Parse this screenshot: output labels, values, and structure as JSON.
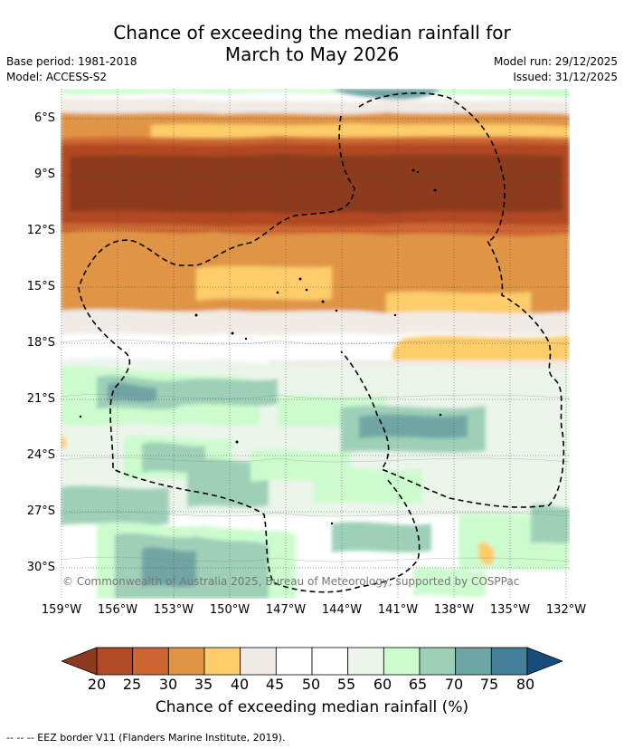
{
  "title": {
    "line1": "Chance of exceeding the median rainfall for",
    "line2": "March to May 2026"
  },
  "meta": {
    "base_period": "Base period: 1981-2018",
    "model": "Model: ACCESS-S2",
    "model_run": "Model run: 29/12/2025",
    "issued": "Issued: 31/12/2025"
  },
  "axes": {
    "lat_labels": [
      "6°S",
      "9°S",
      "12°S",
      "15°S",
      "18°S",
      "21°S",
      "24°S",
      "27°S",
      "30°S"
    ],
    "lon_labels": [
      "159°W",
      "156°W",
      "153°W",
      "150°W",
      "147°W",
      "144°W",
      "141°W",
      "138°W",
      "135°W",
      "132°W"
    ]
  },
  "map": {
    "credit": "© Commonwealth of Australia 2025, Bureau of Meteorology, supported by COSPPac"
  },
  "colorbar": {
    "labels": [
      "20",
      "25",
      "30",
      "35",
      "40",
      "45",
      "50",
      "55",
      "60",
      "65",
      "70",
      "75",
      "80"
    ],
    "colors": [
      "#8c3a1f",
      "#b04a24",
      "#cc6633",
      "#e09445",
      "#fdcd6b",
      "#f0ebe6",
      "#ffffff",
      "#ffffff",
      "#ebf5ea",
      "#ccfcce",
      "#9ed0b8",
      "#6fa5a4",
      "#457f98",
      "#174d7a"
    ],
    "title": "Chance of exceeding median rainfall (%)"
  },
  "footer": {
    "eez": "--  --  -- EEZ border V11 (Flanders Marine Institute, 2019)."
  }
}
